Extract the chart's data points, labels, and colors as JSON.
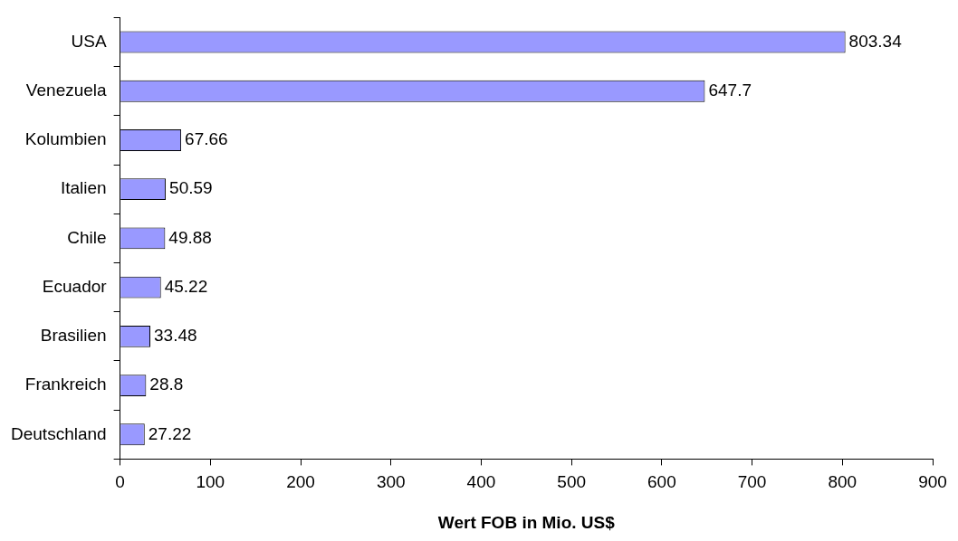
{
  "chart_data": {
    "type": "bar",
    "orientation": "horizontal",
    "xlabel": "Wert FOB in Mio. US$",
    "categories": [
      "USA",
      "Venezuela",
      "Kolumbien",
      "Italien",
      "Chile",
      "Ecuador",
      "Brasilien",
      "Frankreich",
      "Deutschland"
    ],
    "values": [
      803.34,
      647.7,
      67.66,
      50.59,
      49.88,
      45.22,
      33.48,
      28.8,
      27.22
    ],
    "color": "#9999ff",
    "xlim": [
      0,
      900
    ],
    "xticks": [
      0,
      100,
      200,
      300,
      400,
      500,
      600,
      700,
      800,
      900
    ],
    "grid": false,
    "legend": false,
    "data_labels": true
  }
}
